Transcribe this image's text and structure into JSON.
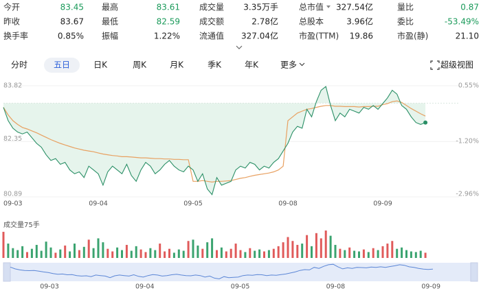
{
  "quote": [
    [
      {
        "label": "今开",
        "value": "83.45",
        "color": "#1a9a5a"
      },
      {
        "label": "最高",
        "value": "83.61",
        "color": "#1a9a5a"
      },
      {
        "label": "成交量",
        "value": "3.35万手",
        "color": "#222222"
      },
      {
        "label": "总市值",
        "value": "327.54亿",
        "color": "#222222"
      },
      {
        "label": "量比",
        "value": "0.87",
        "color": "#1a9a5a"
      }
    ],
    [
      {
        "label": "昨收",
        "value": "83.67",
        "color": "#222222"
      },
      {
        "label": "最低",
        "value": "82.59",
        "color": "#1a9a5a"
      },
      {
        "label": "成交额",
        "value": "2.78亿",
        "color": "#222222"
      },
      {
        "label": "总股本",
        "value": "3.96亿",
        "color": "#222222"
      },
      {
        "label": "委比",
        "value": "-53.49%",
        "color": "#1a9a5a"
      }
    ],
    [
      {
        "label": "换手率",
        "value": "0.85%",
        "color": "#222222"
      },
      {
        "label": "振幅",
        "value": "1.22%",
        "color": "#222222"
      },
      {
        "label": "流通值",
        "value": "327.04亿",
        "color": "#222222"
      },
      {
        "label": "市盈(TTM)",
        "value": "19.86",
        "color": "#222222"
      },
      {
        "label": "市盈(静)",
        "value": "21.10",
        "color": "#222222"
      }
    ]
  ],
  "tabs": [
    "分时",
    "五日",
    "日K",
    "周K",
    "月K",
    "季K",
    "年K",
    "更多"
  ],
  "active_tab": 1,
  "super_view": "超级视图",
  "chart_data": {
    "type": "line",
    "categories": [
      "09-03",
      null,
      null,
      null,
      null,
      null,
      null,
      null,
      null,
      null,
      null,
      null,
      null,
      null,
      null,
      null,
      null,
      null,
      null,
      null,
      "09-04",
      null,
      null,
      null,
      null,
      null,
      null,
      null,
      null,
      null,
      null,
      null,
      null,
      null,
      null,
      null,
      null,
      null,
      null,
      null,
      "09-05",
      null,
      null,
      null,
      null,
      null,
      null,
      null,
      null,
      null,
      null,
      null,
      null,
      null,
      null,
      null,
      null,
      null,
      null,
      null,
      "09-08",
      null,
      null,
      null,
      null,
      null,
      null,
      null,
      null,
      null,
      null,
      null,
      null,
      null,
      null,
      null,
      null,
      null,
      null,
      null,
      "09-09",
      null,
      null,
      null,
      null,
      null,
      null,
      null,
      null,
      null
    ],
    "series": [
      {
        "color": "#2a8f66",
        "values": [
          83.25,
          82.9,
          82.7,
          82.6,
          82.55,
          82.6,
          82.45,
          82.3,
          82.2,
          82.0,
          81.85,
          81.9,
          81.75,
          81.8,
          81.6,
          81.5,
          81.55,
          81.4,
          81.7,
          81.6,
          81.5,
          81.2,
          81.55,
          81.7,
          81.6,
          81.5,
          81.75,
          81.45,
          81.3,
          81.6,
          81.8,
          81.7,
          81.5,
          81.6,
          81.75,
          81.85,
          81.7,
          81.6,
          81.55,
          81.7,
          81.6,
          81.3,
          81.5,
          81.1,
          80.95,
          81.4,
          81.2,
          81.25,
          81.3,
          81.6,
          81.7,
          81.65,
          81.8,
          81.75,
          81.6,
          81.7,
          81.65,
          81.8,
          81.9,
          82.1,
          82.3,
          82.6,
          82.75,
          82.7,
          83.2,
          83.0,
          83.4,
          83.7,
          83.8,
          83.3,
          82.9,
          83.1,
          83.0,
          83.2,
          83.15,
          83.1,
          83.25,
          83.2,
          83.3,
          83.2,
          83.35,
          83.5,
          83.7,
          83.6,
          83.3,
          83.2,
          83.0,
          82.85,
          82.8,
          82.85
        ]
      },
      {
        "color": "#e8a060",
        "values": [
          83.25,
          83.05,
          82.9,
          82.8,
          82.72,
          82.68,
          82.63,
          82.58,
          82.52,
          82.46,
          82.4,
          82.35,
          82.3,
          82.26,
          82.22,
          82.18,
          82.15,
          82.12,
          82.1,
          82.08,
          82.05,
          82.02,
          82.0,
          81.98,
          81.97,
          81.95,
          81.95,
          81.94,
          81.93,
          81.92,
          81.92,
          81.91,
          81.9,
          81.9,
          81.89,
          81.89,
          81.88,
          81.88,
          81.87,
          81.87,
          81.3,
          81.3,
          81.32,
          81.3,
          81.28,
          81.3,
          81.3,
          81.31,
          81.32,
          81.35,
          81.38,
          81.4,
          81.43,
          81.46,
          81.48,
          81.5,
          81.52,
          81.55,
          81.6,
          81.7,
          82.9,
          83.0,
          83.1,
          83.15,
          83.2,
          83.22,
          83.25,
          83.28,
          83.3,
          83.3,
          83.28,
          83.28,
          83.27,
          83.27,
          83.27,
          83.26,
          83.27,
          83.27,
          83.28,
          83.28,
          83.32,
          83.35,
          83.4,
          83.42,
          83.38,
          83.3,
          83.22,
          83.15,
          83.08,
          83.02
        ]
      }
    ],
    "ylim": [
      80.89,
      83.82
    ],
    "yticks": [
      83.82,
      82.35,
      80.89
    ],
    "y2lim": [
      -2.96,
      0.55
    ],
    "y2ticks": [
      {
        "value": 0.55,
        "label": "0.55%"
      },
      {
        "value": -1.2,
        "label": "-1.20%"
      },
      {
        "value": -2.96,
        "label": "-2.96%"
      }
    ],
    "area_color": "#e6f4ec",
    "volume": {
      "label": "成交量75手",
      "up_color": "#e05a5a",
      "down_color": "#3aa36f",
      "values": [
        40,
        22,
        15,
        12,
        18,
        9,
        14,
        20,
        11,
        25,
        16,
        8,
        13,
        19,
        10,
        22,
        12,
        17,
        28,
        15,
        30,
        24,
        14,
        10,
        16,
        12,
        20,
        11,
        18,
        13,
        9,
        15,
        12,
        22,
        10,
        14,
        8,
        13,
        11,
        26,
        28,
        19,
        14,
        24,
        30,
        12,
        16,
        10,
        14,
        22,
        12,
        9,
        15,
        11,
        13,
        10,
        12,
        14,
        18,
        24,
        32,
        26,
        20,
        22,
        35,
        18,
        38,
        30,
        42,
        34,
        20,
        14,
        12,
        16,
        11,
        10,
        13,
        9,
        15,
        12,
        18,
        22,
        26,
        14,
        16,
        12,
        10,
        9,
        11,
        8
      ]
    }
  }
}
